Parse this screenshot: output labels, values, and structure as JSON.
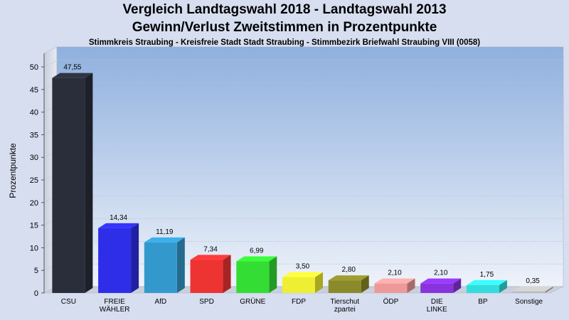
{
  "header": {
    "title_line1": "Vergleich Landtagswahl 2018 - Landtagswahl 2013",
    "title_line2": "Gewinn/Verlust Zweitstimmen in Prozentpunkte",
    "subtitle": "Stimmkreis Straubing - Kreisfreie Stadt Stadt Straubing - Stimmbezirk Briefwahl Straubing VIII (0058)"
  },
  "chart_data": {
    "type": "bar",
    "title": "Vergleich Landtagswahl 2018 - Landtagswahl 2013",
    "subtitle": "Gewinn/Verlust Zweitstimmen in Prozentpunkte",
    "ylabel": "Prozentpunkte",
    "xlabel": "",
    "ylim": [
      0,
      53
    ],
    "yticks": [
      0,
      5,
      10,
      15,
      20,
      25,
      30,
      35,
      40,
      45,
      50
    ],
    "grid": true,
    "categories": [
      [
        "CSU"
      ],
      [
        "FREIE",
        "WÄHLER"
      ],
      [
        "AfD"
      ],
      [
        "SPD"
      ],
      [
        "GRÜNE"
      ],
      [
        "FDP"
      ],
      [
        "Tierschut",
        "zpartei"
      ],
      [
        "ÖDP"
      ],
      [
        "DIE",
        "LINKE"
      ],
      [
        "BP"
      ],
      [
        "Sonstige"
      ]
    ],
    "values": [
      47.55,
      14.34,
      11.19,
      7.34,
      6.99,
      3.5,
      2.8,
      2.1,
      2.1,
      1.75,
      0.35
    ],
    "value_labels": [
      "47,55",
      "14,34",
      "11,19",
      "7,34",
      "6,99",
      "3,50",
      "2,80",
      "2,10",
      "2,10",
      "1,75",
      "0,35"
    ],
    "colors": [
      "#2a2e3a",
      "#2e2ee8",
      "#3399cc",
      "#ee3333",
      "#33dd33",
      "#eeee33",
      "#8a8a2a",
      "#ee9999",
      "#8833dd",
      "#33dddd",
      "#bbbbbb"
    ]
  }
}
